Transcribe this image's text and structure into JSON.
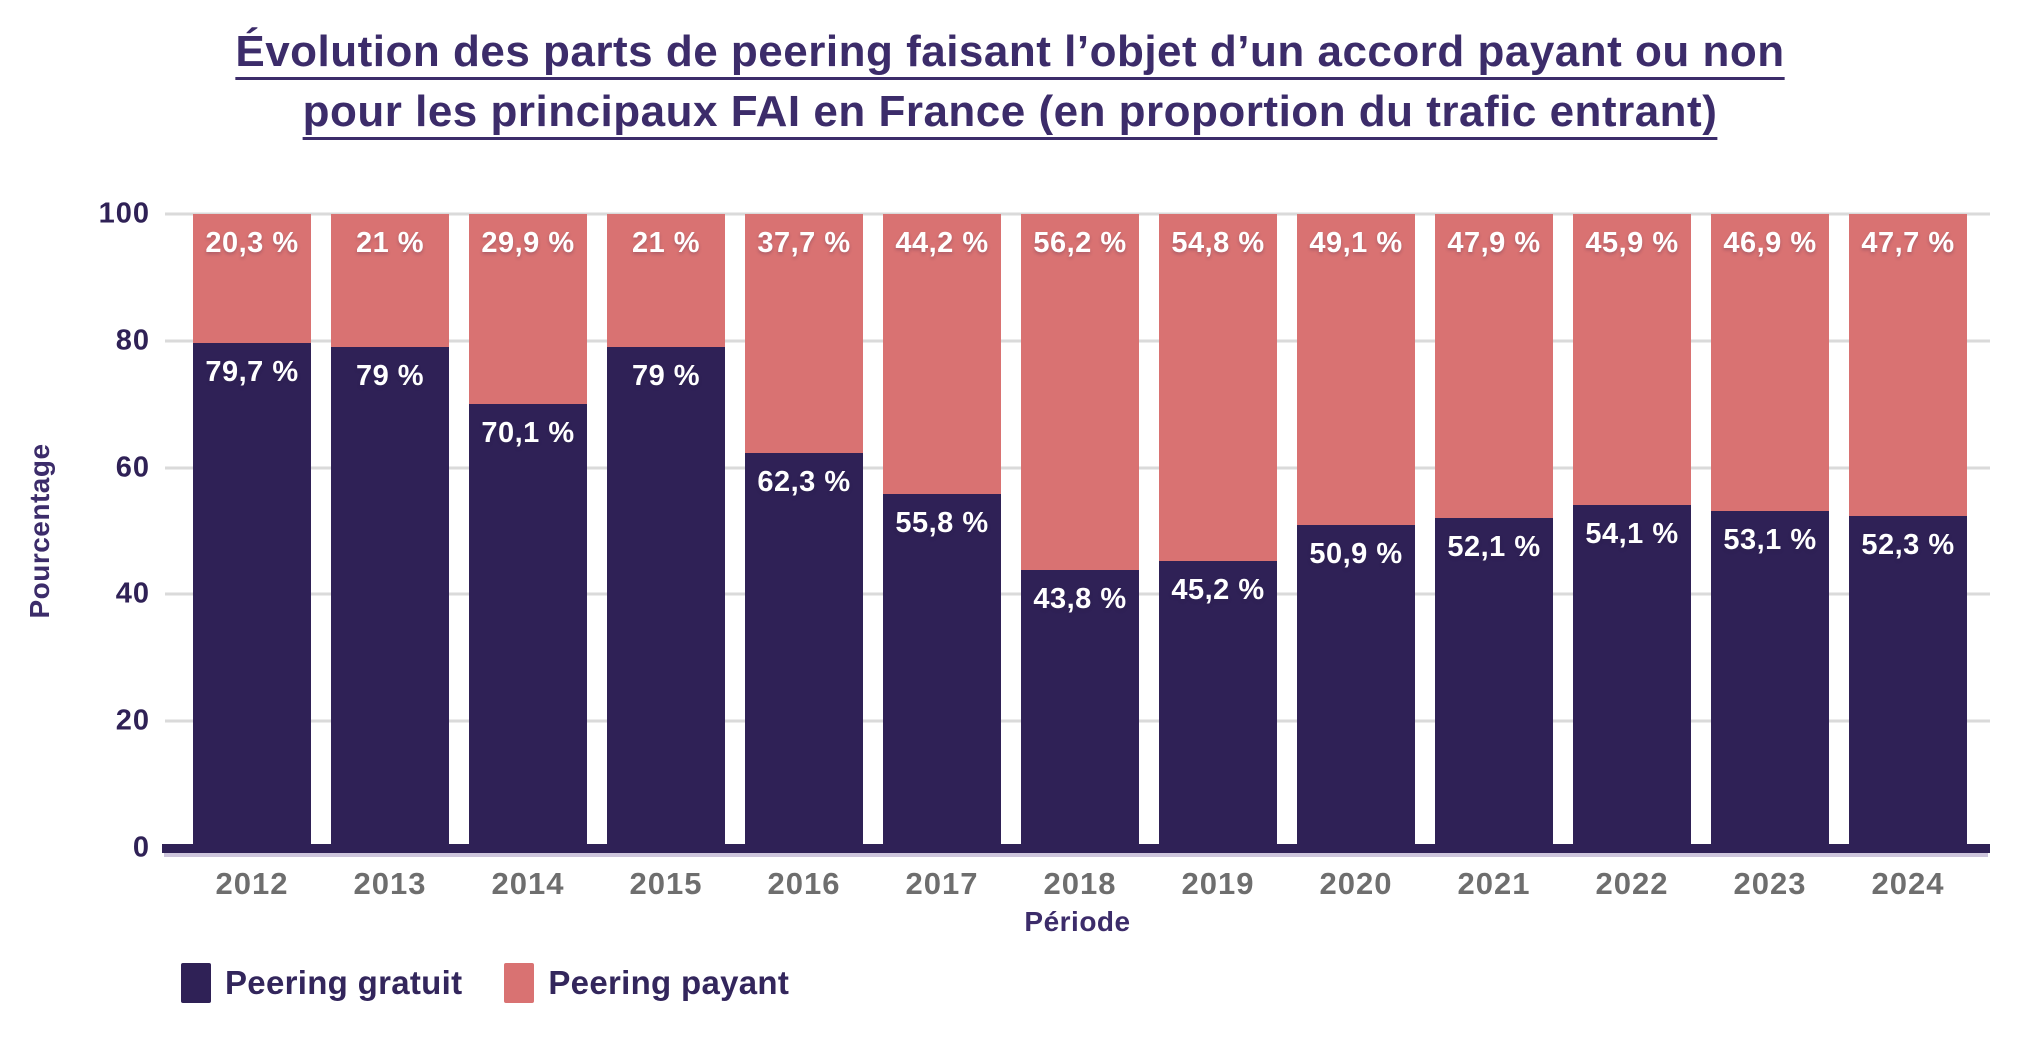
{
  "title": {
    "line1": "Évolution des parts de peering faisant l’objet d’un accord payant ou non",
    "line2": "pour les principaux FAI en France (en proportion du trafic entrant)"
  },
  "y_axis": {
    "label": "Pourcentage",
    "ticks": [
      100,
      80,
      60,
      40,
      20,
      0
    ]
  },
  "x_axis": {
    "label": "Période"
  },
  "legend": [
    {
      "label": "Peering gratuit",
      "color": "#2f2156"
    },
    {
      "label": "Peering payant",
      "color": "#d97272"
    }
  ],
  "colors": {
    "bar_gratuit": "#2f2156",
    "bar_payant": "#d97272",
    "grid": "#dadada",
    "axis": "#2f2156",
    "tick_text": "#2f2156",
    "year_text": "#6e6e6e",
    "title_text": "#3c2c6a",
    "value_text": "#ffffff"
  },
  "chart_data": {
    "type": "bar",
    "stacked": true,
    "categories": [
      "2012",
      "2013",
      "2014",
      "2015",
      "2016",
      "2017",
      "2018",
      "2019",
      "2020",
      "2021",
      "2022",
      "2023",
      "2024"
    ],
    "series": [
      {
        "name": "Peering gratuit",
        "color": "#2f2156",
        "values": [
          79.7,
          79,
          70.1,
          79,
          62.3,
          55.8,
          43.8,
          45.2,
          50.9,
          52.1,
          54.1,
          53.1,
          52.3
        ],
        "labels": [
          "79,7 %",
          "79 %",
          "70,1 %",
          "79 %",
          "62,3 %",
          "55,8 %",
          "43,8 %",
          "45,2 %",
          "50,9 %",
          "52,1 %",
          "54,1 %",
          "53,1 %",
          "52,3 %"
        ]
      },
      {
        "name": "Peering payant",
        "color": "#d97272",
        "values": [
          20.3,
          21,
          29.9,
          21,
          37.7,
          44.2,
          56.2,
          54.8,
          49.1,
          47.9,
          45.9,
          46.9,
          47.7
        ],
        "labels": [
          "20,3 %",
          "21 %",
          "29,9 %",
          "21 %",
          "37,7 %",
          "44,2 %",
          "56,2 %",
          "54,8 %",
          "49,1 %",
          "47,9 %",
          "45,9 %",
          "46,9 %",
          "47,7 %"
        ]
      }
    ],
    "title": "Évolution des parts de peering faisant l’objet d’un accord payant ou non pour les principaux FAI en France (en proportion du trafic entrant)",
    "xlabel": "Période",
    "ylabel": "Pourcentage",
    "ylim": [
      0,
      100
    ],
    "grid": true,
    "legend_position": "bottom-left"
  }
}
